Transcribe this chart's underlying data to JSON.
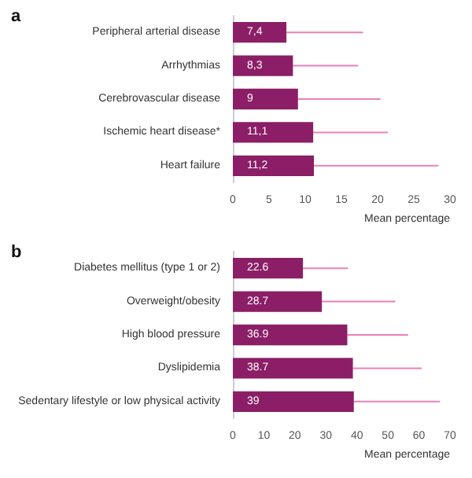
{
  "chart_data": [
    {
      "type": "bar",
      "title": "a",
      "orientation": "horizontal",
      "categories": [
        "Peripheral arterial disease",
        "Arrhythmias",
        "Cerebrovascular disease",
        "Ischemic heart disease*",
        "Heart failure"
      ],
      "values": [
        7.4,
        8.3,
        9,
        11.1,
        11.2
      ],
      "value_labels": [
        "7,4",
        "8,3",
        "9",
        "11,1",
        "11,2"
      ],
      "color": "#8b1e66",
      "errors": [
        [
          7.4,
          18
        ],
        [
          8.3,
          17.3
        ],
        [
          9,
          20.4
        ],
        [
          11.1,
          21.4
        ],
        [
          11.2,
          28.4
        ]
      ],
      "xlabel": "Mean percentage",
      "xlim": [
        0,
        30
      ],
      "xticks": [
        0,
        5,
        10,
        15,
        20,
        25,
        30
      ],
      "grid": false
    },
    {
      "type": "bar",
      "title": "b",
      "orientation": "horizontal",
      "categories": [
        "Diabetes mellitus (type 1 or 2)",
        "Overweight/obesity",
        "High blood pressure",
        "Dyslipidemia",
        "Sedentary lifestyle or low physical activity"
      ],
      "values": [
        22.6,
        28.7,
        36.9,
        38.7,
        39
      ],
      "value_labels": [
        "22.6",
        "28.7",
        "36.9",
        "38.7",
        "39"
      ],
      "color": "#8b1e66",
      "errors": [
        [
          22.6,
          37.1
        ],
        [
          28.7,
          52.4
        ],
        [
          36.9,
          56.5
        ],
        [
          38.7,
          60.9
        ],
        [
          39,
          66.8
        ]
      ],
      "xlabel": "Mean percentage",
      "xlim": [
        0,
        70
      ],
      "xticks": [
        0,
        10,
        20,
        30,
        40,
        50,
        60,
        70
      ],
      "grid": false
    }
  ]
}
